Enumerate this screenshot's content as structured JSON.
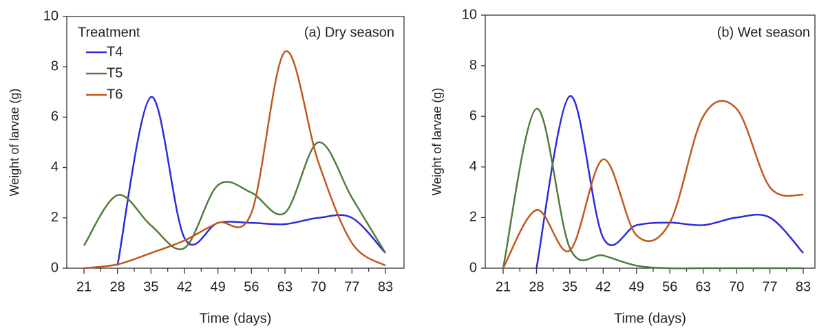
{
  "chart_data": [
    {
      "type": "line",
      "title": "(a) Dry season",
      "x_label": "Time (days)",
      "y_label": "Weight of larvae (g)",
      "categories": [
        "21",
        "28",
        "35",
        "42",
        "49",
        "56",
        "63",
        "70",
        "77",
        "83"
      ],
      "ylim": [
        0,
        10
      ],
      "yticks": [
        0,
        2,
        4,
        6,
        8,
        10
      ],
      "legend": "upper left",
      "legend_title": "Treatment",
      "series": [
        {
          "name": "T4",
          "color": "#2b2bdc",
          "values": [
            null,
            0.1,
            6.8,
            1.2,
            1.8,
            1.8,
            1.75,
            2.0,
            2.0,
            0.6
          ]
        },
        {
          "name": "T5",
          "color": "#4f7d3b",
          "values": [
            0.9,
            2.9,
            1.7,
            0.8,
            3.3,
            3.0,
            2.2,
            5.0,
            2.8,
            0.6
          ]
        },
        {
          "name": "T6",
          "color": "#c0581c",
          "values": [
            0,
            0.15,
            0.6,
            1.1,
            1.8,
            2.2,
            8.6,
            4.2,
            1.0,
            0.1
          ]
        }
      ]
    },
    {
      "type": "line",
      "title": "(b) Wet season",
      "x_label": "Time (days)",
      "y_label": "Weight of larvae (g)",
      "categories": [
        "21",
        "28",
        "35",
        "42",
        "49",
        "56",
        "63",
        "70",
        "77",
        "83"
      ],
      "ylim": [
        0,
        10
      ],
      "yticks": [
        0,
        2,
        4,
        6,
        8,
        10
      ],
      "series": [
        {
          "color": "#2b2bdc",
          "values": [
            null,
            0,
            6.8,
            1.2,
            1.7,
            1.8,
            1.7,
            2.0,
            2.0,
            0.6
          ]
        },
        {
          "color": "#4f7d3b",
          "values": [
            0,
            6.3,
            0.8,
            0.5,
            0.1,
            0,
            0,
            0,
            0,
            0
          ]
        },
        {
          "color": "#c0581c",
          "values": [
            0,
            2.3,
            0.7,
            4.3,
            1.3,
            1.8,
            6.0,
            6.3,
            3.2,
            2.9
          ]
        }
      ]
    }
  ]
}
